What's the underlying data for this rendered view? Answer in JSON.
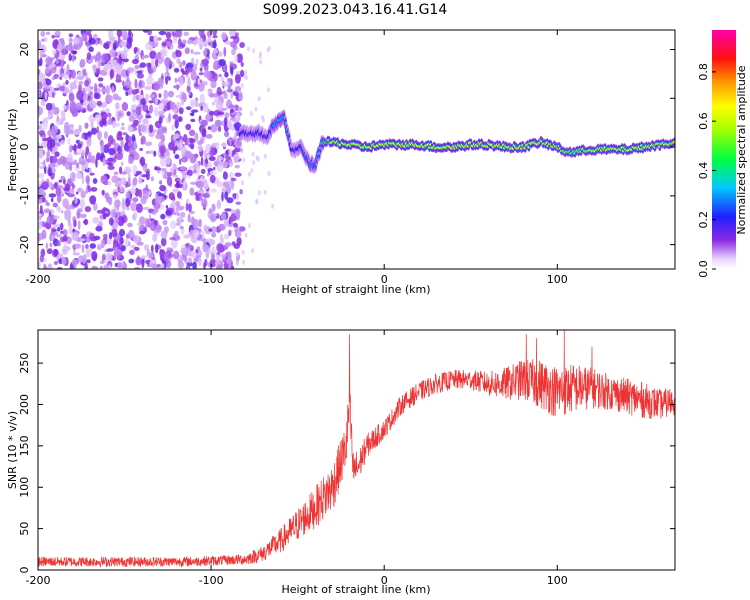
{
  "title": "S099.2023.043.16.41.G14",
  "chart_data": [
    {
      "type": "heatmap",
      "xlabel": "Height of straight line (km)",
      "ylabel": "Frequency (Hz)",
      "xlim": [
        -200,
        168
      ],
      "ylim": [
        -25,
        24
      ],
      "xticks": [
        -200,
        -100,
        0,
        100
      ],
      "yticks": [
        -20,
        -10,
        0,
        10,
        20
      ],
      "grid": false,
      "colorbar": {
        "label": "Normalized spectral amplitude",
        "range": [
          0,
          0.97
        ],
        "ticks": [
          0.0,
          0.2,
          0.4,
          0.6,
          0.8
        ]
      },
      "noise_region_x": [
        -200,
        -82
      ],
      "ridge": {
        "x": [
          -83,
          -78,
          -73,
          -68,
          -63,
          -58,
          -53,
          -48,
          -44,
          -40,
          -36,
          -30,
          -20,
          -10,
          0,
          10,
          20,
          30,
          40,
          50,
          60,
          70,
          80,
          90,
          100,
          105,
          110,
          120,
          130,
          140,
          150,
          160,
          168
        ],
        "freq": [
          3,
          2.5,
          3,
          2,
          5,
          6,
          -1,
          0,
          -3,
          -4,
          1,
          1,
          0.5,
          0,
          0.5,
          0.5,
          0.5,
          0,
          0,
          0.5,
          0.5,
          0,
          0,
          1,
          0,
          -1,
          -1,
          -0.5,
          -0.5,
          -0.5,
          0,
          0.5,
          1
        ],
        "amp": [
          0.3,
          0.25,
          0.3,
          0.25,
          0.4,
          0.45,
          0.25,
          0.3,
          0.35,
          0.4,
          0.5,
          0.85,
          0.9,
          0.9,
          0.92,
          0.9,
          0.92,
          0.9,
          0.95,
          0.92,
          0.92,
          0.9,
          0.9,
          0.88,
          0.8,
          0.7,
          0.75,
          0.82,
          0.85,
          0.85,
          0.85,
          0.85,
          0.8
        ]
      }
    },
    {
      "type": "line",
      "xlabel": "Height of straight line (km)",
      "ylabel": "SNR (10 * v/v)",
      "xlim": [
        -200,
        168
      ],
      "ylim": [
        0,
        290
      ],
      "xticks": [
        -200,
        -100,
        0,
        100
      ],
      "yticks": [
        0,
        50,
        100,
        150,
        200,
        250
      ],
      "grid": false,
      "color": "#ee3333",
      "series": [
        {
          "x": [
            -200,
            -180,
            -160,
            -140,
            -120,
            -100,
            -90,
            -80,
            -70,
            -60,
            -50,
            -40,
            -30,
            -25,
            -22,
            -20,
            -18,
            -15,
            -10,
            0,
            10,
            20,
            30,
            40,
            50,
            60,
            70,
            80,
            90,
            100,
            110,
            120,
            130,
            140,
            150,
            160,
            168
          ],
          "values": [
            10,
            10,
            10,
            10,
            10,
            11,
            12,
            13,
            20,
            35,
            55,
            75,
            100,
            130,
            150,
            200,
            120,
            125,
            150,
            170,
            200,
            215,
            225,
            230,
            230,
            225,
            225,
            230,
            225,
            215,
            220,
            220,
            215,
            210,
            205,
            200,
            205
          ],
          "noise": [
            6,
            6,
            6,
            6,
            6,
            6,
            6,
            7,
            10,
            15,
            20,
            25,
            30,
            30,
            30,
            30,
            25,
            20,
            15,
            12,
            12,
            12,
            12,
            12,
            12,
            15,
            20,
            25,
            30,
            32,
            30,
            25,
            22,
            22,
            22,
            18,
            18
          ],
          "spikes": [
            {
              "x": -20,
              "y": 285
            },
            {
              "x": 82,
              "y": 285
            },
            {
              "x": 104,
              "y": 290
            },
            {
              "x": 88,
              "y": 280
            },
            {
              "x": 120,
              "y": 270
            }
          ]
        }
      ]
    }
  ]
}
